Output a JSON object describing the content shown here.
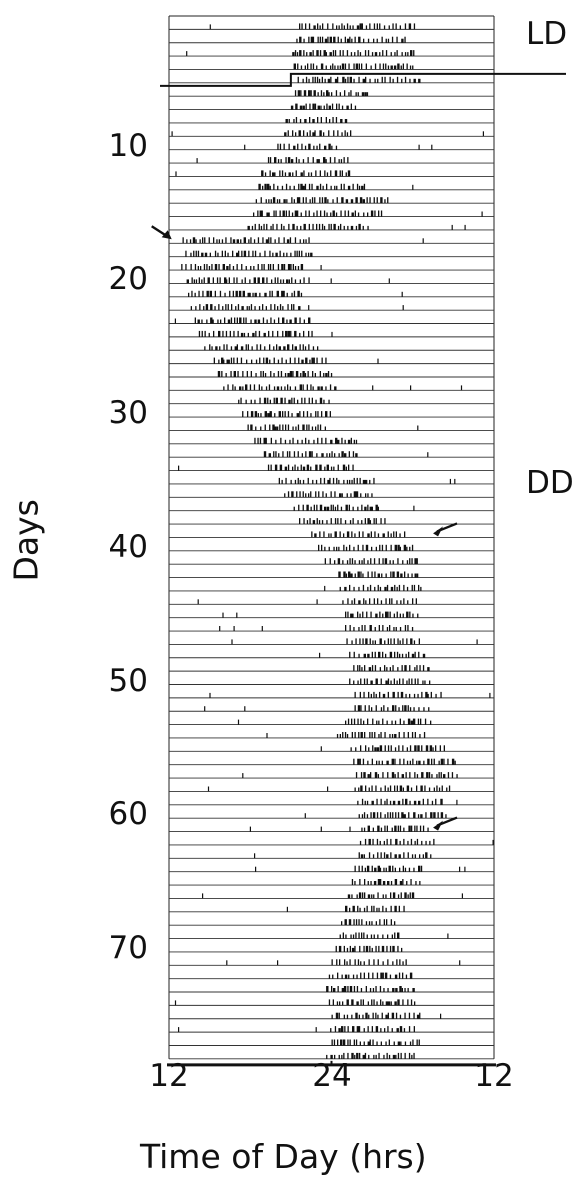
{
  "chart_data": {
    "type": "actogram",
    "title": "",
    "xlabel": "Time of Day (hrs)",
    "ylabel": "Days",
    "x_ticks": [
      "12",
      "24",
      "12"
    ],
    "xlim_hours": [
      12,
      36
    ],
    "y_ticks": [
      "10",
      "20",
      "30",
      "40",
      "50",
      "60",
      "70"
    ],
    "y_tick_days": [
      10,
      20,
      30,
      40,
      50,
      60,
      70
    ],
    "days_total": 78,
    "phases": [
      {
        "label": "LD",
        "days": [
          1,
          5
        ],
        "light_on": 21,
        "light_off": 36
      },
      {
        "label": "DD",
        "days": [
          6,
          78
        ]
      }
    ],
    "transition_day": 5,
    "markers": [
      {
        "name": "arrow-1",
        "day": 17,
        "time": 12.2,
        "direction": "left"
      },
      {
        "name": "arrow-2",
        "day": 39,
        "time": 31.5,
        "direction": "right"
      },
      {
        "name": "arrow-3",
        "day": 61,
        "time": 31.5,
        "direction": "right"
      }
    ],
    "activity_onset_hours": [
      21.6,
      21.4,
      21.1,
      21.2,
      21.5,
      21.3,
      21.0,
      20.6,
      20.5,
      20.0,
      19.3,
      18.8,
      18.6,
      18.4,
      18.2,
      17.8,
      13.0,
      13.2,
      12.9,
      13.3,
      13.4,
      13.6,
      13.9,
      14.2,
      14.6,
      15.3,
      15.6,
      16.0,
      17.1,
      17.4,
      17.8,
      18.3,
      19.0,
      19.3,
      20.1,
      20.5,
      21.2,
      21.6,
      22.5,
      23.0,
      23.5,
      24.5,
      24.6,
      24.8,
      25.0,
      25.0,
      25.1,
      25.3,
      25.6,
      25.3,
      25.7,
      25.7,
      25.0,
      24.4,
      25.4,
      25.6,
      25.8,
      25.7,
      25.9,
      26.0,
      26.2,
      26.1,
      26.0,
      25.7,
      25.5,
      25.2,
      25.0,
      24.7,
      24.6,
      24.3,
      24.0,
      23.8,
      23.6,
      23.8,
      24.0,
      23.9,
      24.0,
      23.6
    ],
    "activity_duration_hours": [
      8.5,
      8.2,
      9.0,
      9.0,
      9.0,
      5.5,
      4.8,
      4.5,
      5.0,
      4.5,
      6.0,
      6.5,
      8.0,
      10.0,
      9.5,
      9.0,
      9.5,
      9.5,
      9.0,
      9.0,
      8.5,
      8.0,
      8.5,
      8.5,
      8.5,
      8.5,
      8.5,
      8.5,
      7.0,
      6.5,
      6.0,
      7.5,
      7.0,
      6.5,
      7.0,
      6.5,
      6.5,
      6.5,
      7.0,
      7.0,
      7.0,
      6.0,
      6.0,
      5.5,
      5.5,
      5.0,
      5.5,
      5.5,
      5.5,
      6.0,
      6.5,
      5.5,
      6.5,
      6.5,
      7.0,
      7.5,
      7.5,
      7.0,
      6.5,
      6.5,
      5.0,
      5.5,
      5.5,
      5.0,
      5.0,
      5.0,
      4.5,
      4.0,
      4.5,
      5.0,
      5.5,
      6.0,
      6.5,
      6.5,
      6.5,
      6.5,
      6.5,
      6.5
    ]
  },
  "labels": {
    "phase_ld": "LD",
    "phase_dd": "DD"
  }
}
